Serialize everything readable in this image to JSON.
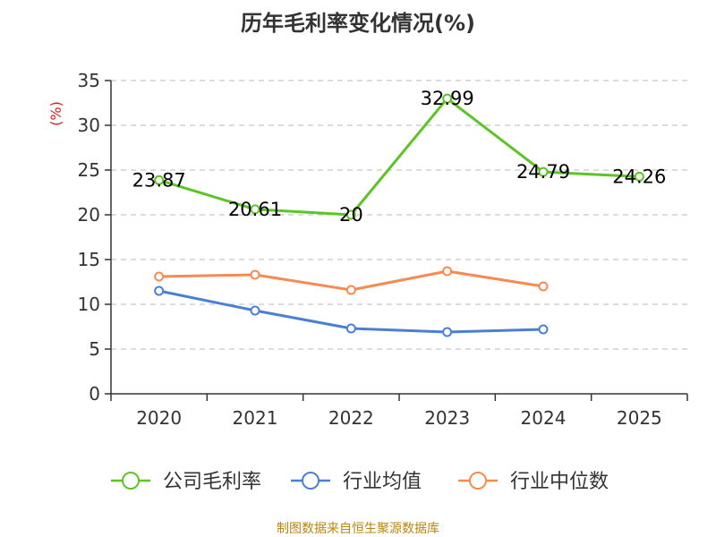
{
  "chart_data": {
    "type": "line",
    "title": "历年毛利率变化情况(%)",
    "ylabel": "(%)",
    "xlabel": "",
    "categories": [
      "2020",
      "2021",
      "2022",
      "2023",
      "2024",
      "2025"
    ],
    "ylim": [
      0,
      35
    ],
    "yticks": [
      0,
      5,
      10,
      15,
      20,
      25,
      30,
      35
    ],
    "grid": "horizontal-dashed",
    "legend_position": "bottom",
    "series": [
      {
        "name": "公司毛利率",
        "color": "#5cc425",
        "values": [
          23.87,
          20.61,
          20,
          32.99,
          24.79,
          24.26
        ],
        "labels": [
          "23.87",
          "20.61",
          "20",
          "32.99",
          "24.79",
          "24.26"
        ],
        "show_labels": true
      },
      {
        "name": "行业均值",
        "color": "#4b7fd6",
        "values": [
          11.5,
          9.3,
          7.3,
          6.9,
          7.2,
          null
        ],
        "show_labels": false
      },
      {
        "name": "行业中位数",
        "color": "#f78a52",
        "values": [
          13.1,
          13.3,
          11.6,
          13.7,
          12.0,
          null
        ],
        "show_labels": false
      }
    ]
  },
  "source_note": "制图数据来自恒生聚源数据库"
}
